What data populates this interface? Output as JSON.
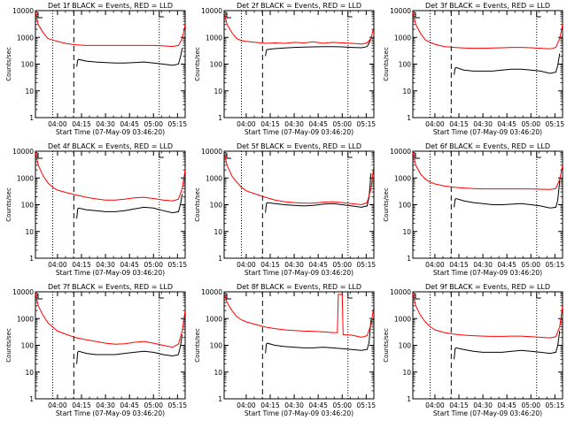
{
  "chart_data": {
    "type": "line",
    "yscale": "log",
    "ylim": [
      1,
      10000
    ],
    "ylabel": "Counts/sec",
    "xlabel": "Start Time (07-May-09 03:46:20)",
    "x_range_hours": [
      3.77,
      5.33
    ],
    "ytick_labels": [
      "1",
      "10",
      "100",
      "1000",
      "10000"
    ],
    "ytick_values": [
      1,
      10,
      100,
      1000,
      10000
    ],
    "xtick_values": [
      4.0,
      4.25,
      4.5,
      4.75,
      5.0,
      5.25
    ],
    "legend": "BLACK = Events, RED = LLD",
    "colors": {
      "events": "#000000",
      "lld": "#ff0000",
      "axis": "#000000"
    },
    "panels": [
      {
        "title": "Det  1f  BLACK = Events, RED = LLD",
        "xticks": [
          "04:00",
          "04:15",
          "04:30",
          "04:45",
          "05:00",
          "05:15"
        ],
        "dotted_lines": [
          3.95,
          5.06
        ],
        "dashed_line": 4.17,
        "series": [
          {
            "name": "Events",
            "x": [
              4.2,
              4.21,
              4.22,
              4.3,
              4.4,
              4.5,
              4.6,
              4.7,
              4.8,
              4.9,
              5.0,
              5.1,
              5.2,
              5.26,
              5.28,
              5.3
            ],
            "values": [
              80,
              140,
              150,
              130,
              120,
              115,
              110,
              110,
              115,
              120,
              110,
              100,
              90,
              100,
              180,
              400
            ]
          },
          {
            "name": "LLD",
            "x": [
              3.77,
              3.8,
              3.85,
              3.9,
              3.95,
              4.0,
              4.1,
              4.2,
              4.3,
              4.4,
              4.5,
              4.6,
              4.7,
              4.8,
              4.9,
              5.0,
              5.1,
              5.2,
              5.26,
              5.3,
              5.33
            ],
            "values": [
              9000,
              3000,
              1500,
              900,
              800,
              700,
              580,
              520,
              500,
              500,
              500,
              500,
              500,
              500,
              500,
              500,
              480,
              460,
              500,
              900,
              3000
            ]
          }
        ]
      },
      {
        "title": "Det  2f  BLACK = Events, RED = LLD",
        "xticks": [
          "04:00",
          "04:15",
          "04:30",
          "04:45",
          "05:00",
          "05:15"
        ],
        "dotted_lines": [
          3.95,
          5.06
        ],
        "dashed_line": 4.17,
        "series": [
          {
            "name": "Events",
            "x": [
              4.2,
              4.21,
              4.22,
              4.3,
              4.4,
              4.5,
              4.6,
              4.7,
              4.8,
              4.9,
              5.0,
              5.1,
              5.2,
              5.26,
              5.28,
              5.3
            ],
            "values": [
              200,
              330,
              350,
              380,
              400,
              420,
              430,
              440,
              450,
              450,
              440,
              420,
              410,
              450,
              600,
              900
            ]
          },
          {
            "name": "LLD",
            "x": [
              3.77,
              3.8,
              3.85,
              3.9,
              3.95,
              4.0,
              4.1,
              4.2,
              4.3,
              4.4,
              4.5,
              4.6,
              4.7,
              4.8,
              4.9,
              5.0,
              5.1,
              5.2,
              5.26,
              5.3,
              5.33
            ],
            "values": [
              9000,
              3000,
              1500,
              900,
              750,
              700,
              650,
              600,
              620,
              600,
              650,
              620,
              680,
              600,
              650,
              620,
              600,
              560,
              620,
              900,
              2500
            ]
          }
        ]
      },
      {
        "title": "Det  3f  BLACK = Events, RED = LLD",
        "xticks": [
          "04:00",
          "04:15",
          "04:30",
          "04:45",
          "05:00",
          "05:15"
        ],
        "dotted_lines": [
          3.95,
          5.06
        ],
        "dashed_line": 4.17,
        "series": [
          {
            "name": "Events",
            "x": [
              4.2,
              4.21,
              4.22,
              4.3,
              4.4,
              4.5,
              4.6,
              4.7,
              4.8,
              4.9,
              5.0,
              5.1,
              5.2,
              5.26,
              5.28,
              5.3
            ],
            "values": [
              40,
              70,
              75,
              60,
              55,
              55,
              55,
              60,
              65,
              65,
              60,
              55,
              45,
              50,
              90,
              250
            ]
          },
          {
            "name": "LLD",
            "x": [
              3.77,
              3.8,
              3.85,
              3.9,
              3.95,
              4.0,
              4.1,
              4.2,
              4.3,
              4.4,
              4.5,
              4.6,
              4.7,
              4.8,
              4.9,
              5.0,
              5.1,
              5.2,
              5.26,
              5.3,
              5.33
            ],
            "values": [
              9000,
              3000,
              1400,
              800,
              650,
              550,
              450,
              420,
              400,
              390,
              390,
              400,
              410,
              420,
              420,
              410,
              390,
              370,
              420,
              900,
              3000
            ]
          }
        ]
      },
      {
        "title": "Det  4f  BLACK = Events, RED = LLD",
        "xticks": [
          "04:00",
          "04:15",
          "04:30",
          "04:45",
          "05:00",
          "05:15"
        ],
        "dotted_lines": [
          3.95,
          5.06
        ],
        "dashed_line": 4.17,
        "series": [
          {
            "name": "Events",
            "x": [
              4.2,
              4.21,
              4.22,
              4.3,
              4.4,
              4.5,
              4.6,
              4.7,
              4.8,
              4.9,
              5.0,
              5.1,
              5.2,
              5.26,
              5.28,
              5.3
            ],
            "values": [
              30,
              70,
              75,
              65,
              60,
              55,
              55,
              60,
              70,
              80,
              75,
              60,
              50,
              55,
              100,
              250
            ]
          },
          {
            "name": "LLD",
            "x": [
              3.77,
              3.8,
              3.85,
              3.9,
              3.95,
              4.0,
              4.1,
              4.2,
              4.3,
              4.4,
              4.5,
              4.6,
              4.7,
              4.8,
              4.9,
              5.0,
              5.1,
              5.2,
              5.26,
              5.3,
              5.33
            ],
            "values": [
              9000,
              3000,
              1200,
              650,
              450,
              350,
              280,
              230,
              190,
              165,
              150,
              150,
              160,
              180,
              190,
              170,
              150,
              140,
              160,
              400,
              2000
            ]
          }
        ]
      },
      {
        "title": "Det  5f  BLACK = Events, RED = LLD",
        "xticks": [
          "04:00",
          "04:15",
          "04:30",
          "04:45",
          "05:00",
          "05:15"
        ],
        "dotted_lines": [
          3.95,
          5.06
        ],
        "dashed_line": 4.17,
        "series": [
          {
            "name": "Events",
            "x": [
              4.2,
              4.21,
              4.22,
              4.3,
              4.4,
              4.5,
              4.6,
              4.7,
              4.8,
              4.9,
              5.0,
              5.1,
              5.2,
              5.26,
              5.28,
              5.3
            ],
            "values": [
              50,
              110,
              120,
              110,
              100,
              95,
              90,
              95,
              105,
              110,
              100,
              90,
              80,
              90,
              200,
              1500
            ]
          },
          {
            "name": "LLD",
            "x": [
              3.77,
              3.8,
              3.85,
              3.9,
              3.95,
              4.0,
              4.1,
              4.2,
              4.3,
              4.4,
              4.5,
              4.6,
              4.7,
              4.8,
              4.9,
              5.0,
              5.1,
              5.2,
              5.26,
              5.3,
              5.33
            ],
            "values": [
              9000,
              3000,
              1200,
              700,
              450,
              330,
              250,
              190,
              150,
              130,
              120,
              115,
              115,
              125,
              130,
              120,
              110,
              100,
              120,
              400,
              3000
            ]
          }
        ]
      },
      {
        "title": "Det  6f  BLACK = Events, RED = LLD",
        "xticks": [
          "04:00",
          "04:15",
          "04:30",
          "04:45",
          "05:00",
          "05:15"
        ],
        "dotted_lines": [
          3.95,
          5.06
        ],
        "dashed_line": 4.17,
        "series": [
          {
            "name": "Events",
            "x": [
              4.2,
              4.21,
              4.22,
              4.3,
              4.4,
              4.5,
              4.6,
              4.7,
              4.8,
              4.9,
              5.0,
              5.1,
              5.2,
              5.26,
              5.28,
              5.3
            ],
            "values": [
              80,
              160,
              170,
              140,
              120,
              110,
              100,
              100,
              105,
              110,
              100,
              90,
              75,
              80,
              150,
              800
            ]
          },
          {
            "name": "LLD",
            "x": [
              3.77,
              3.8,
              3.85,
              3.9,
              3.95,
              4.0,
              4.1,
              4.2,
              4.3,
              4.4,
              4.5,
              4.6,
              4.7,
              4.8,
              4.9,
              5.0,
              5.1,
              5.2,
              5.26,
              5.3,
              5.33
            ],
            "values": [
              9000,
              3000,
              1400,
              900,
              700,
              600,
              500,
              450,
              420,
              400,
              390,
              390,
              390,
              390,
              390,
              390,
              380,
              370,
              400,
              900,
              3000
            ]
          }
        ]
      },
      {
        "title": "Det  7f  BLACK = Events, RED = LLD",
        "xticks": [
          "04:00",
          "04:15",
          "04:30",
          "04:45",
          "05:00",
          "05:15"
        ],
        "dotted_lines": [
          3.95,
          5.06
        ],
        "dashed_line": 4.17,
        "series": [
          {
            "name": "Events",
            "x": [
              4.2,
              4.21,
              4.22,
              4.3,
              4.4,
              4.5,
              4.6,
              4.7,
              4.8,
              4.9,
              5.0,
              5.1,
              5.2,
              5.26,
              5.28,
              5.3
            ],
            "values": [
              20,
              55,
              60,
              50,
              45,
              45,
              45,
              50,
              55,
              60,
              55,
              45,
              40,
              45,
              90,
              250
            ]
          },
          {
            "name": "LLD",
            "x": [
              3.77,
              3.8,
              3.85,
              3.9,
              3.95,
              4.0,
              4.1,
              4.2,
              4.3,
              4.4,
              4.5,
              4.6,
              4.7,
              4.8,
              4.9,
              5.0,
              5.1,
              5.2,
              5.26,
              5.3,
              5.33
            ],
            "values": [
              9000,
              3000,
              1300,
              700,
              480,
              340,
              250,
              190,
              160,
              140,
              120,
              110,
              115,
              130,
              140,
              120,
              100,
              85,
              110,
              350,
              2000
            ]
          }
        ]
      },
      {
        "title": "Det  8f  BLACK = Events, RED = LLD",
        "xticks": [
          "04:00",
          "04:15",
          "04:30",
          "04:45",
          "05:00",
          "05:15"
        ],
        "dotted_lines": [
          5.06
        ],
        "dashed_line": 4.17,
        "series": [
          {
            "name": "Events",
            "x": [
              4.2,
              4.21,
              4.22,
              4.3,
              4.4,
              4.5,
              4.6,
              4.7,
              4.8,
              4.9,
              5.0,
              5.1,
              5.2,
              5.26,
              5.28,
              5.3
            ],
            "values": [
              50,
              110,
              120,
              100,
              90,
              85,
              80,
              80,
              85,
              80,
              75,
              70,
              65,
              70,
              130,
              900
            ]
          },
          {
            "name": "LLD",
            "x": [
              3.77,
              3.8,
              3.85,
              3.9,
              3.95,
              4.0,
              4.1,
              4.2,
              4.3,
              4.4,
              4.5,
              4.6,
              4.7,
              4.8,
              4.9,
              4.95,
              4.96,
              4.98,
              5.0,
              5.01,
              5.1,
              5.2,
              5.26,
              5.3,
              5.33
            ],
            "values": [
              9000,
              4000,
              2000,
              1200,
              900,
              750,
              600,
              480,
              420,
              380,
              360,
              340,
              330,
              320,
              300,
              300,
              8000,
              8000,
              8000,
              250,
              240,
              200,
              230,
              600,
              3000
            ]
          }
        ]
      },
      {
        "title": "Det  9f  BLACK = Events, RED = LLD",
        "xticks": [
          "04:00",
          "04:15",
          "04:30",
          "04:45",
          "05:00",
          "05:15"
        ],
        "dotted_lines": [
          3.95,
          5.06
        ],
        "dashed_line": 4.17,
        "series": [
          {
            "name": "Events",
            "x": [
              4.2,
              4.21,
              4.22,
              4.3,
              4.4,
              4.5,
              4.6,
              4.7,
              4.8,
              4.9,
              5.0,
              5.1,
              5.2,
              5.26,
              5.28,
              5.3
            ],
            "values": [
              30,
              75,
              80,
              70,
              60,
              55,
              55,
              55,
              60,
              65,
              60,
              55,
              50,
              55,
              100,
              350
            ]
          },
          {
            "name": "LLD",
            "x": [
              3.77,
              3.8,
              3.85,
              3.9,
              3.95,
              4.0,
              4.1,
              4.2,
              4.3,
              4.4,
              4.5,
              4.6,
              4.7,
              4.8,
              4.9,
              5.0,
              5.1,
              5.2,
              5.26,
              5.3,
              5.33
            ],
            "values": [
              9000,
              3000,
              1300,
              750,
              500,
              380,
              300,
              260,
              240,
              230,
              220,
              215,
              215,
              220,
              220,
              210,
              200,
              190,
              210,
              500,
              3000
            ]
          }
        ]
      }
    ]
  }
}
